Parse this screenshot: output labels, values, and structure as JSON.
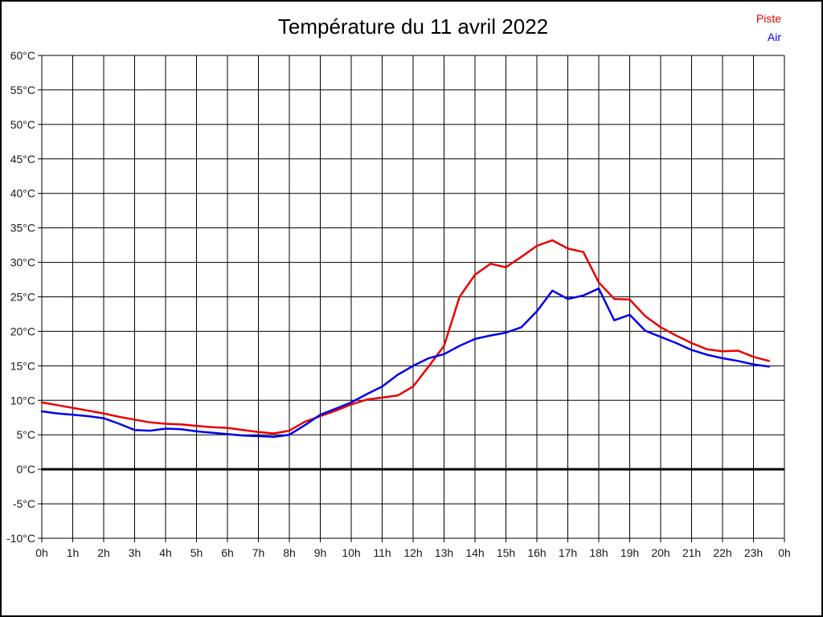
{
  "title": "Température du 11 avril 2022",
  "legend": [
    {
      "label": "Piste",
      "color": "#e80000"
    },
    {
      "label": "Air",
      "color": "#0000e8"
    }
  ],
  "colors": {
    "background": "#ffffff",
    "border": "#000000",
    "grid": "#000000",
    "axis_text": "#1a1a1a",
    "zero_line": "#000000"
  },
  "chart_data": {
    "type": "line",
    "title": "Température du 11 avril 2022",
    "xlabel": "",
    "ylabel": "",
    "x_unit": "hours",
    "xlim": [
      0,
      24
    ],
    "ylim": [
      -10,
      60
    ],
    "grid": "on",
    "legend_position": "top-right",
    "zero_line": {
      "value": 0,
      "width": 3
    },
    "x_tick_hours": [
      0,
      1,
      2,
      3,
      4,
      5,
      6,
      7,
      8,
      9,
      10,
      11,
      12,
      13,
      14,
      15,
      16,
      17,
      18,
      19,
      20,
      21,
      22,
      23,
      24
    ],
    "x_tick_labels": [
      "0h",
      "1h",
      "2h",
      "3h",
      "4h",
      "5h",
      "6h",
      "7h",
      "8h",
      "9h",
      "10h",
      "11h",
      "12h",
      "13h",
      "14h",
      "15h",
      "16h",
      "17h",
      "18h",
      "19h",
      "20h",
      "21h",
      "22h",
      "23h",
      "0h"
    ],
    "y_tick_values": [
      60,
      55,
      50,
      45,
      40,
      35,
      30,
      25,
      20,
      15,
      10,
      5,
      0,
      -5,
      -10
    ],
    "y_tick_labels": [
      "60°C",
      "55°C",
      "50°C",
      "45°C",
      "40°C",
      "35°C",
      "30°C",
      "25°C",
      "20°C",
      "15°C",
      "10°C",
      "5°C",
      "0°C",
      "-5°C",
      "-10°C"
    ],
    "x": [
      0,
      0.5,
      1,
      1.5,
      2,
      2.5,
      3,
      3.5,
      4,
      4.5,
      5,
      5.5,
      6,
      6.5,
      7,
      7.5,
      8,
      8.5,
      9,
      9.5,
      10,
      10.5,
      11,
      11.5,
      12,
      12.5,
      13,
      13.5,
      14,
      14.5,
      15,
      15.5,
      16,
      16.5,
      17,
      17.5,
      18,
      18.5,
      19,
      19.5,
      20,
      20.5,
      21,
      21.5,
      22,
      22.5,
      23,
      23.5
    ],
    "series": [
      {
        "name": "Piste",
        "color": "#e80000",
        "values": [
          9.7,
          9.3,
          8.9,
          8.5,
          8.1,
          7.6,
          7.2,
          6.8,
          6.6,
          6.5,
          6.3,
          6.1,
          6.0,
          5.7,
          5.4,
          5.2,
          5.6,
          6.9,
          7.7,
          8.5,
          9.4,
          10.1,
          10.4,
          10.7,
          12.0,
          14.9,
          17.9,
          25.0,
          28.2,
          29.8,
          29.3,
          30.8,
          32.4,
          33.2,
          32.0,
          31.5,
          27.1,
          24.7,
          24.6,
          22.2,
          20.6,
          19.4,
          18.3,
          17.4,
          17.1,
          17.2,
          16.3,
          15.7
        ]
      },
      {
        "name": "Air",
        "color": "#0000e8",
        "values": [
          8.4,
          8.1,
          7.9,
          7.7,
          7.4,
          6.6,
          5.7,
          5.6,
          5.9,
          5.8,
          5.5,
          5.3,
          5.1,
          4.9,
          4.8,
          4.7,
          5.0,
          6.4,
          7.9,
          8.8,
          9.7,
          10.9,
          12.0,
          13.7,
          15.0,
          16.1,
          16.7,
          17.9,
          18.9,
          19.4,
          19.8,
          20.6,
          22.9,
          25.9,
          24.7,
          25.2,
          26.2,
          21.6,
          22.4,
          20.1,
          19.2,
          18.3,
          17.3,
          16.6,
          16.1,
          15.7,
          15.2,
          14.9
        ]
      }
    ]
  }
}
